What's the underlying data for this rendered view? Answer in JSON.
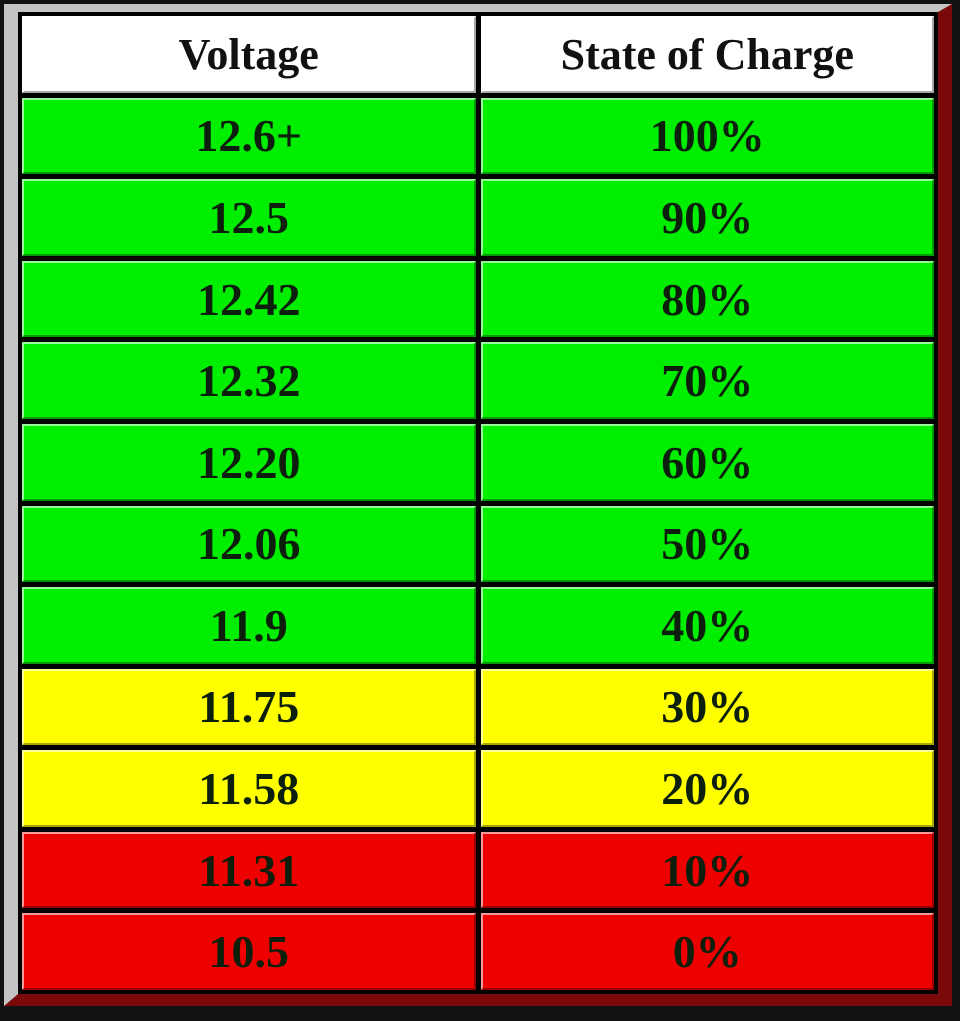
{
  "table": {
    "header": [
      "Voltage",
      "State of Charge"
    ],
    "rows": [
      {
        "cells": [
          "12.6+",
          "100%"
        ],
        "color": "#00ee00"
      },
      {
        "cells": [
          "12.5",
          "90%"
        ],
        "color": "#00ee00"
      },
      {
        "cells": [
          "12.42",
          "80%"
        ],
        "color": "#00ee00"
      },
      {
        "cells": [
          "12.32",
          "70%"
        ],
        "color": "#00ee00"
      },
      {
        "cells": [
          "12.20",
          "60%"
        ],
        "color": "#00ee00"
      },
      {
        "cells": [
          "12.06",
          "50%"
        ],
        "color": "#00ee00"
      },
      {
        "cells": [
          "11.9",
          "40%"
        ],
        "color": "#00ee00"
      },
      {
        "cells": [
          "11.75",
          "30%"
        ],
        "color": "#ffff00"
      },
      {
        "cells": [
          "11.58",
          "20%"
        ],
        "color": "#ffff00"
      },
      {
        "cells": [
          "11.31",
          "10%"
        ],
        "color": "#ee0000"
      },
      {
        "cells": [
          "10.5",
          "0%"
        ],
        "color": "#ee0000"
      }
    ]
  }
}
